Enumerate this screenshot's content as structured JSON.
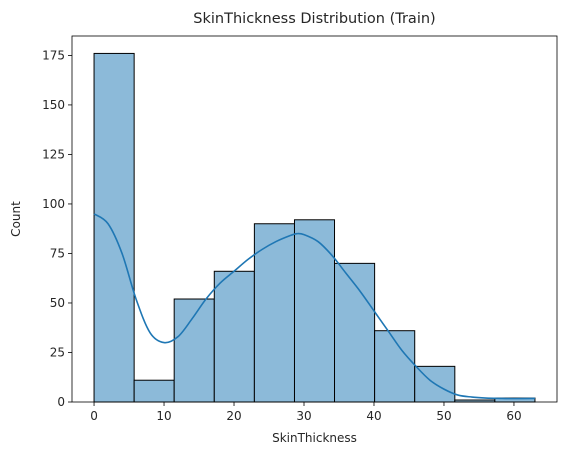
{
  "chart_data": {
    "type": "bar",
    "title": "SkinThickness Distribution (Train)",
    "xlabel": "SkinThickness",
    "ylabel": "Count",
    "xlim": [
      -3.15,
      66.15
    ],
    "ylim": [
      0,
      184.8
    ],
    "xticks": [
      0,
      10,
      20,
      30,
      40,
      50,
      60
    ],
    "yticks": [
      0,
      25,
      50,
      75,
      100,
      125,
      150,
      175
    ],
    "bins": [
      {
        "x0": 0.0,
        "x1": 5.73,
        "count": 176
      },
      {
        "x0": 5.73,
        "x1": 11.45,
        "count": 11
      },
      {
        "x0": 11.45,
        "x1": 17.18,
        "count": 52
      },
      {
        "x0": 17.18,
        "x1": 22.91,
        "count": 66
      },
      {
        "x0": 22.91,
        "x1": 28.64,
        "count": 90
      },
      {
        "x0": 28.64,
        "x1": 34.36,
        "count": 92
      },
      {
        "x0": 34.36,
        "x1": 40.09,
        "count": 70
      },
      {
        "x0": 40.09,
        "x1": 45.82,
        "count": 36
      },
      {
        "x0": 45.82,
        "x1": 51.55,
        "count": 18
      },
      {
        "x0": 51.55,
        "x1": 57.27,
        "count": 1
      },
      {
        "x0": 57.27,
        "x1": 63.0,
        "count": 2
      }
    ],
    "kde": {
      "x": [
        0,
        2,
        4,
        6,
        8,
        10,
        12,
        14,
        16,
        18,
        20,
        22,
        24,
        26,
        28,
        29,
        30,
        32,
        34,
        36,
        38,
        40,
        42,
        44,
        46,
        48,
        50,
        52,
        54,
        56,
        58,
        60,
        63
      ],
      "y": [
        95,
        90,
        75,
        52,
        35,
        30,
        33,
        42,
        52,
        60,
        66,
        72,
        77,
        81,
        84,
        85,
        84.5,
        81,
        74,
        65,
        56,
        46,
        36,
        26,
        18,
        11,
        6.5,
        3.5,
        2.5,
        2,
        1.8,
        1.7,
        1.8
      ]
    },
    "colors": {
      "bar_fill": "#8cbad9",
      "bar_edge": "#000000",
      "kde_line": "#1f77b4"
    },
    "grid": false
  }
}
